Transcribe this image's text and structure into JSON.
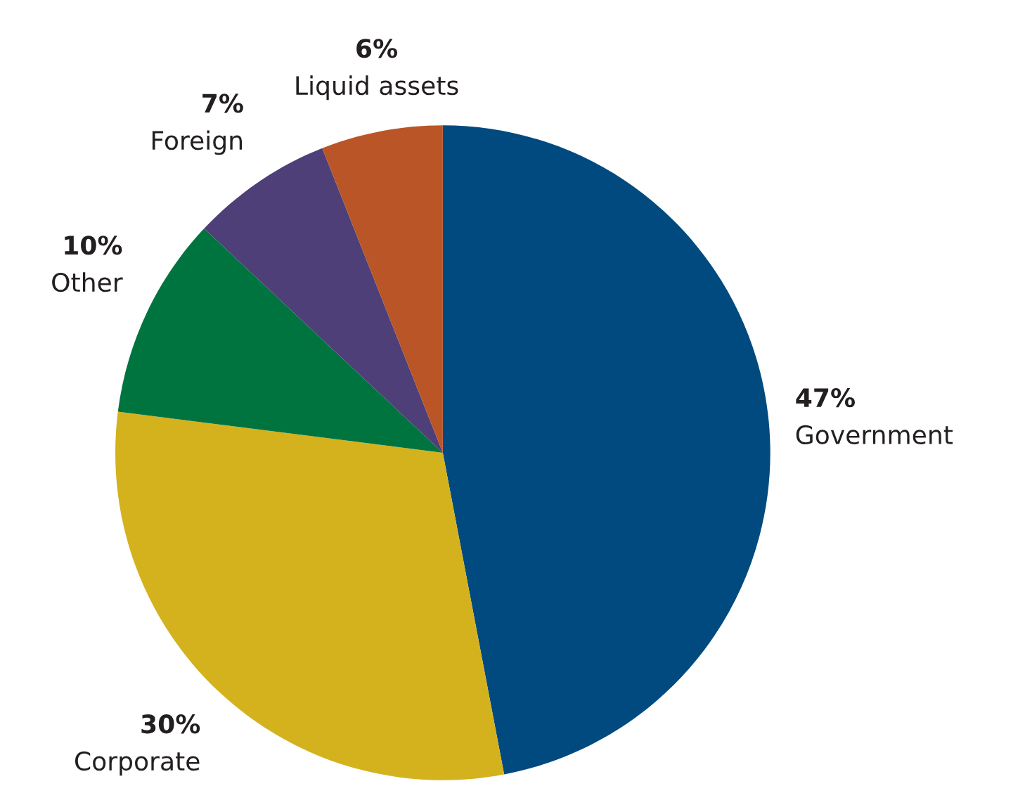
{
  "chart_data": {
    "type": "pie",
    "categories": [
      "Government",
      "Corporate",
      "Other",
      "Foreign",
      "Liquid assets"
    ],
    "values": [
      47,
      30,
      10,
      7,
      6
    ],
    "colors": [
      "#004a7f",
      "#d4b21e",
      "#00743f",
      "#4e3f78",
      "#b95526"
    ],
    "value_labels": [
      "47%",
      "30%",
      "10%",
      "7%",
      "6%"
    ]
  }
}
